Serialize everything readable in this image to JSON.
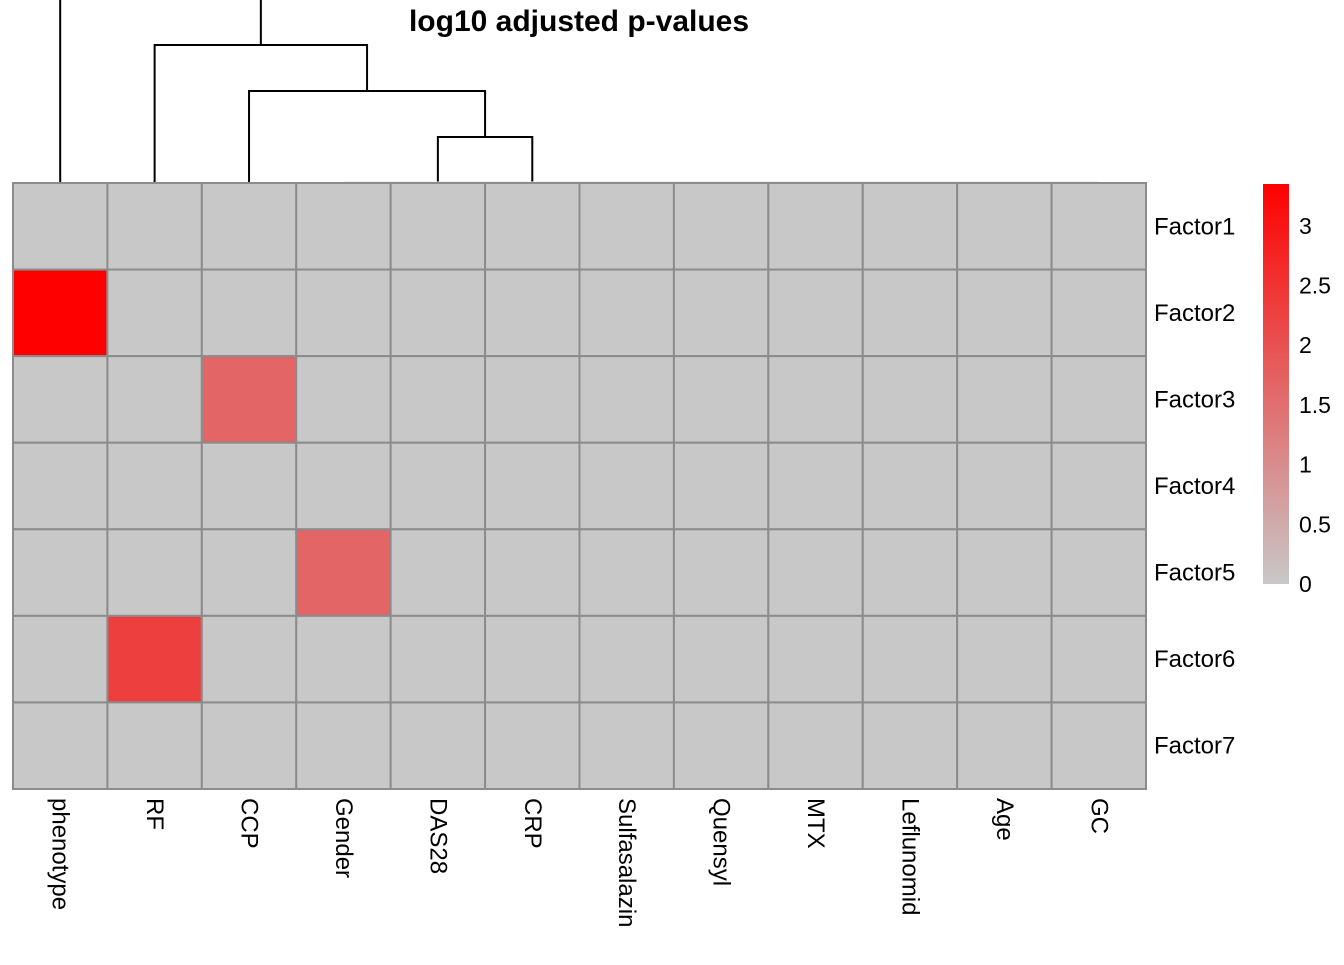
{
  "chart_data": {
    "type": "heatmap",
    "title": "log10 adjusted p-values",
    "rows": [
      "Factor1",
      "Factor2",
      "Factor3",
      "Factor4",
      "Factor5",
      "Factor6",
      "Factor7"
    ],
    "columns": [
      "phenotype",
      "RF",
      "CCP",
      "Gender",
      "DAS28",
      "CRP",
      "Sulfasalazin",
      "Quensyl",
      "MTX",
      "Leflunomid",
      "Age",
      "GC"
    ],
    "values": [
      [
        0,
        0,
        0,
        0,
        0,
        0,
        0,
        0,
        0,
        0,
        0,
        0
      ],
      [
        3.35,
        0,
        0,
        0,
        0,
        0,
        0,
        0,
        0,
        0,
        0,
        0
      ],
      [
        0,
        0,
        1.65,
        0,
        0,
        0,
        0,
        0,
        0,
        0,
        0,
        0
      ],
      [
        0,
        0,
        0,
        0,
        0,
        0,
        0,
        0,
        0,
        0,
        0,
        0
      ],
      [
        0,
        0,
        0,
        1.65,
        0,
        0,
        0,
        0,
        0,
        0,
        0,
        0
      ],
      [
        0,
        2.3,
        0,
        0,
        0,
        0,
        0,
        0,
        0,
        0,
        0,
        0
      ],
      [
        0,
        0,
        0,
        0,
        0,
        0,
        0,
        0,
        0,
        0,
        0,
        0
      ]
    ],
    "color_scale": {
      "min": 0,
      "max": 3.35,
      "low_color": "#c8c8c8",
      "high_color": "#ff0000",
      "ticks": [
        0,
        0.5,
        1,
        1.5,
        2,
        2.5,
        3
      ],
      "tick_labels": [
        "0",
        "0.5",
        "1",
        "1.5",
        "2",
        "2.5",
        "3"
      ]
    },
    "column_dendrogram": [
      {
        "left": "DAS28",
        "right": "CRP"
      },
      {
        "left": "CCP",
        "right": "node1"
      },
      {
        "left": "RF",
        "right": "node2"
      },
      {
        "left": "phenotype",
        "right": "node3"
      }
    ],
    "cell_border_color": "#8c8c8c",
    "legend_placement": "right"
  }
}
